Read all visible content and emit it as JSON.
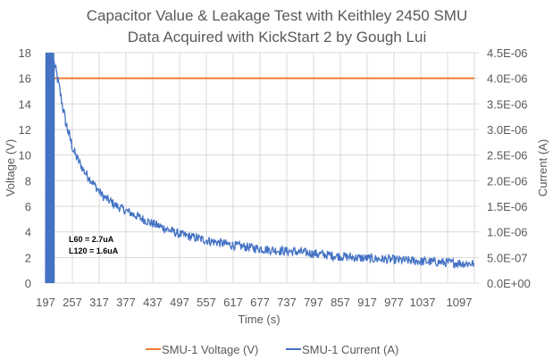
{
  "chart_data": {
    "type": "line",
    "title": "Capacitor Value & Leakage Test with Keithley 2450 SMU",
    "subtitle": "Data Acquired with KickStart 2 by Gough Lui",
    "xlabel": "Time (s)",
    "ylabel_left": "Voltage (V)",
    "ylabel_right": "Current (A)",
    "x_tick_labels": [
      "197",
      "257",
      "317",
      "377",
      "437",
      "497",
      "557",
      "617",
      "677",
      "737",
      "797",
      "857",
      "917",
      "977",
      "1037",
      "1097"
    ],
    "x_range": [
      197,
      1097
    ],
    "y_left": {
      "range": [
        0,
        18
      ],
      "ticks": [
        "0",
        "2",
        "4",
        "6",
        "8",
        "10",
        "12",
        "14",
        "16",
        "18"
      ]
    },
    "y_right": {
      "range": [
        0,
        4.5e-06
      ],
      "ticks": [
        "0.0E+00",
        "5.0E-07",
        "1.0E-06",
        "1.5E-06",
        "2.0E-06",
        "2.5E-06",
        "3.0E-06",
        "3.5E-06",
        "4.0E-06",
        "4.5E-06"
      ]
    },
    "grid": true,
    "legend_position": "bottom",
    "series": [
      {
        "name": "SMU-1 Voltage (V)",
        "axis": "left",
        "color": "#ED7D31",
        "x": [
          205,
          1097
        ],
        "y": [
          16,
          16
        ]
      },
      {
        "name": "SMU-1 Current (A)",
        "axis": "right",
        "color": "#4472C4",
        "x": [
          197,
          205,
          215,
          222,
          230,
          240,
          257,
          277,
          297,
          317,
          347,
          382,
          417,
          477,
          537,
          597,
          667,
          737,
          797,
          857,
          917,
          977,
          1037,
          1097
        ],
        "y": [
          4.5e-06,
          4.5e-06,
          4.3e-06,
          4e-06,
          3.6e-06,
          3.1e-06,
          2.55e-06,
          2.2e-06,
          1.95e-06,
          1.7e-06,
          1.5e-06,
          1.34e-06,
          1.18e-06,
          9.6e-07,
          8.3e-07,
          7.3e-07,
          6.5e-07,
          6e-07,
          5.4e-07,
          4.9e-07,
          4.6e-07,
          4.3e-07,
          4e-07,
          3.8e-07
        ]
      }
    ],
    "annotations": [
      "L60 = 2.7uA",
      "L120 = 1.6uA"
    ]
  }
}
